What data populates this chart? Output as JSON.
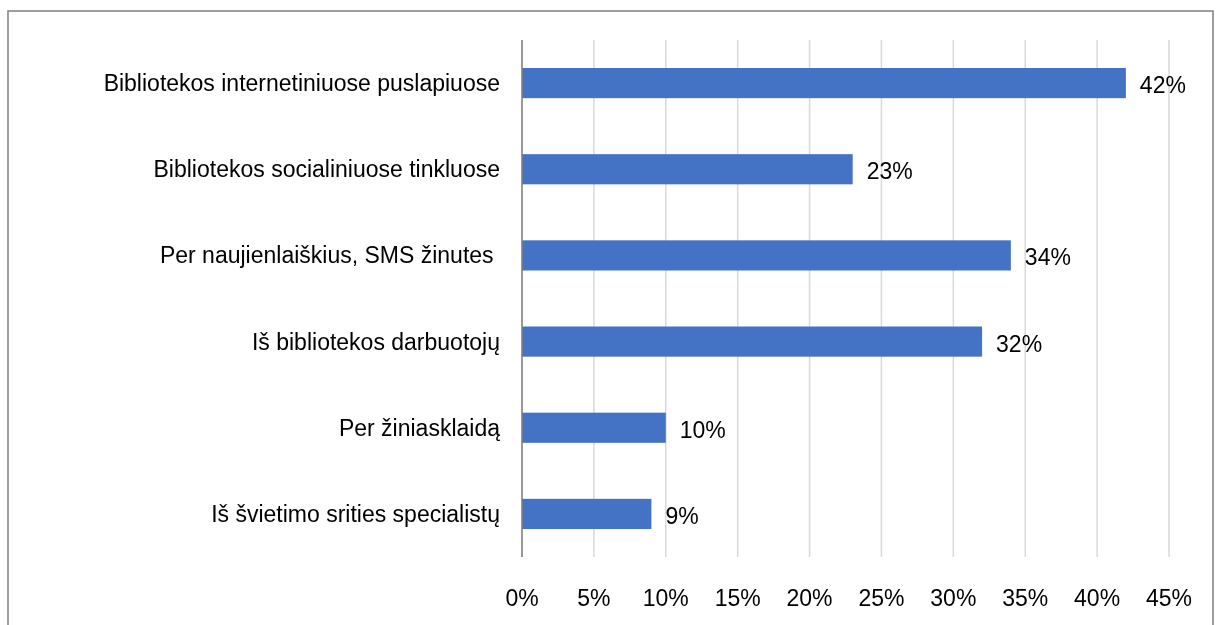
{
  "chart_data": {
    "type": "bar",
    "orientation": "horizontal",
    "categories": [
      "Bibliotekos internetiniuose puslapiuose",
      "Bibliotekos socialiniuose tinkluose",
      "Per naujienlaiškius, SMS žinutes ",
      "Iš bibliotekos darbuotojų",
      "Per žiniasklaidą",
      "Iš švietimo srities specialistų"
    ],
    "values": [
      42,
      23,
      34,
      32,
      10,
      9
    ],
    "color": "#4472c4",
    "value_labels": [
      "42%",
      "23%",
      "34%",
      "32%",
      "10%",
      "9%"
    ],
    "xlim": [
      0,
      45
    ],
    "xticks": [
      {
        "value": 0,
        "label": "0%"
      },
      {
        "value": 5,
        "label": "5%"
      },
      {
        "value": 10,
        "label": "10%"
      },
      {
        "value": 15,
        "label": "15%"
      },
      {
        "value": 20,
        "label": "20%"
      },
      {
        "value": 25,
        "label": "25%"
      },
      {
        "value": 30,
        "label": "30%"
      },
      {
        "value": 35,
        "label": "35%"
      },
      {
        "value": 40,
        "label": "40%"
      },
      {
        "value": 45,
        "label": "45%"
      }
    ],
    "grid": "x"
  }
}
